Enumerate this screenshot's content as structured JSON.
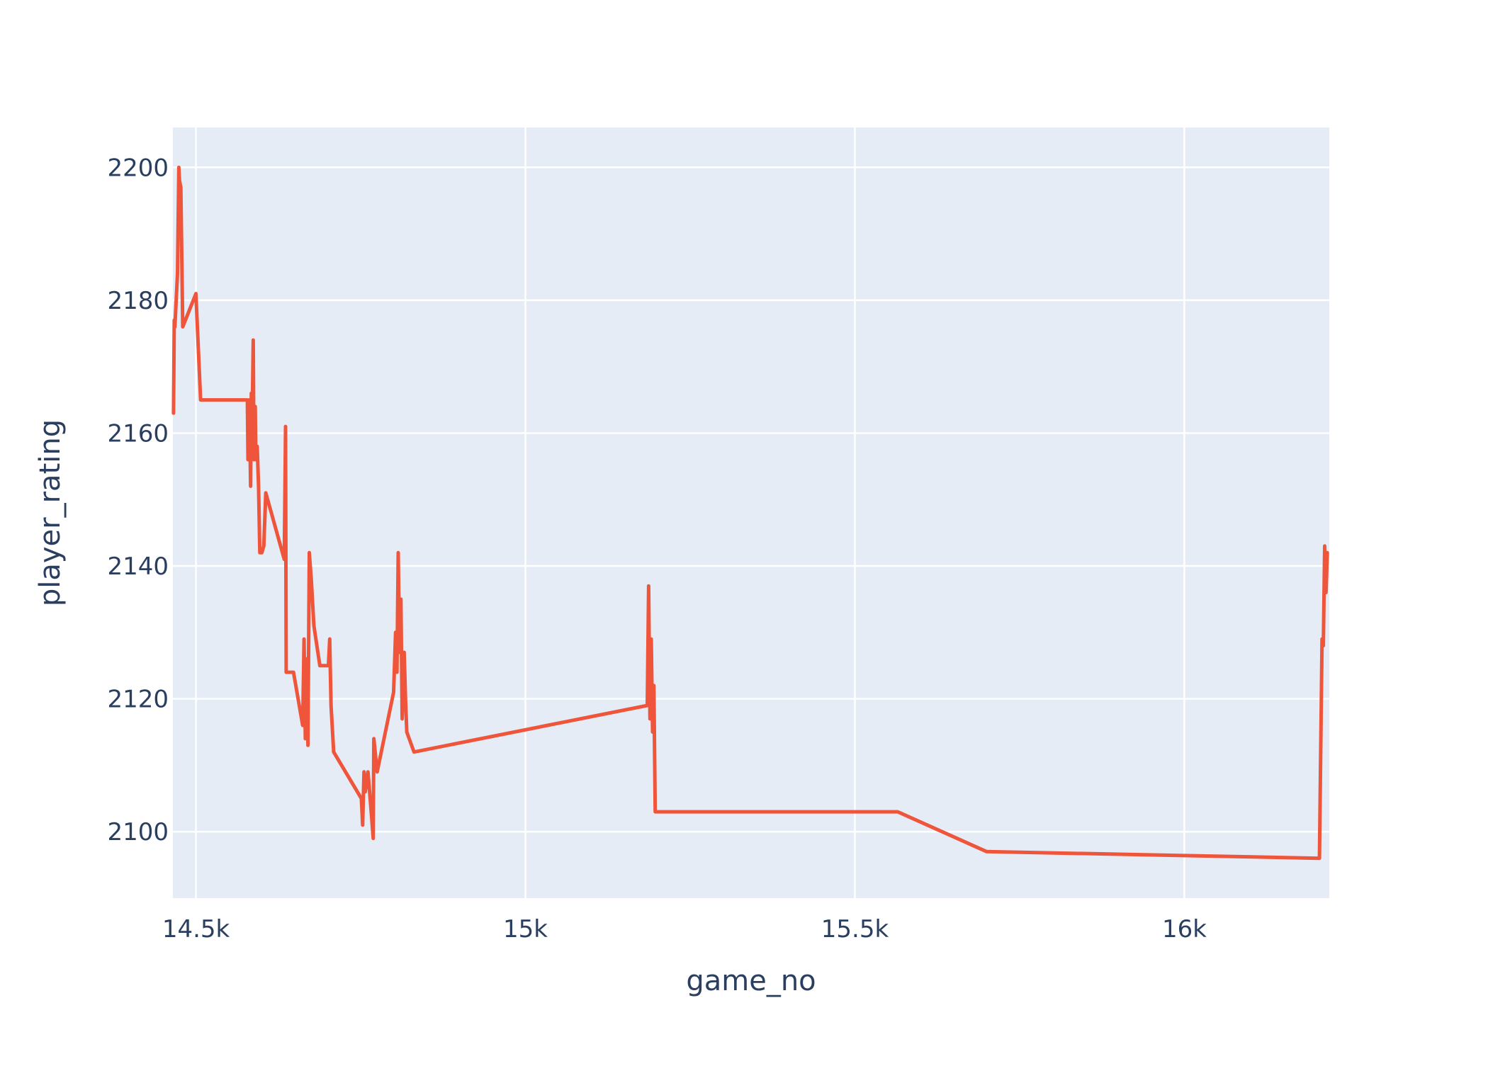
{
  "chart_data": {
    "type": "line",
    "title": "",
    "xlabel": "game_no",
    "ylabel": "player_rating",
    "xlim": [
      14465,
      16220
    ],
    "ylim": [
      2090,
      2206
    ],
    "x_ticks": [
      14500,
      15000,
      15500,
      16000
    ],
    "x_tick_labels": [
      "14.5k",
      "15k",
      "15.5k",
      "16k"
    ],
    "y_ticks": [
      2100,
      2120,
      2140,
      2160,
      2180,
      2200
    ],
    "y_tick_labels": [
      "2100",
      "2120",
      "2140",
      "2160",
      "2180",
      "2200"
    ],
    "grid": true,
    "legend": "none",
    "series": [
      {
        "color": "#ef553b",
        "x": [
          14466,
          14467,
          14468,
          14472,
          14474,
          14475,
          14477,
          14480,
          14488,
          14500,
          14507,
          14510,
          14578,
          14579,
          14581,
          14583,
          14584,
          14585,
          14587,
          14588,
          14590,
          14591,
          14593,
          14595,
          14597,
          14600,
          14603,
          14606,
          14634,
          14636,
          14637,
          14639,
          14642,
          14648,
          14662,
          14664,
          14666,
          14668,
          14670,
          14672,
          14675,
          14679,
          14688,
          14701,
          14703,
          14705,
          14709,
          14751,
          14753,
          14755,
          14757,
          14761,
          14766,
          14769,
          14770,
          14775,
          14800,
          14803,
          14805,
          14807,
          14809,
          14811,
          14813,
          14816,
          14818,
          14820,
          14831,
          15185,
          15187,
          15189,
          15191,
          15193,
          15195,
          15197,
          15199,
          15565,
          15700,
          16205,
          16209,
          16211,
          16213,
          16215,
          16217
        ],
        "y": [
          2163,
          2177,
          2176,
          2184,
          2200,
          2198,
          2197,
          2176,
          2178,
          2181,
          2165,
          2165,
          2165,
          2156,
          2165,
          2152,
          2166,
          2160,
          2174,
          2156,
          2164,
          2156,
          2158,
          2152,
          2142,
          2142,
          2143,
          2151,
          2141,
          2161,
          2124,
          2124,
          2124,
          2124,
          2116,
          2129,
          2114,
          2126,
          2113,
          2142,
          2138,
          2131,
          2125,
          2125,
          2129,
          2119,
          2112,
          2105,
          2101,
          2109,
          2106,
          2109,
          2103,
          2099,
          2114,
          2109,
          2121,
          2130,
          2124,
          2142,
          2127,
          2135,
          2117,
          2127,
          2120,
          2115,
          2112,
          2119,
          2137,
          2117,
          2129,
          2115,
          2122,
          2103,
          2103,
          2103,
          2097,
          2096,
          2129,
          2128,
          2143,
          2136,
          2142
        ]
      }
    ]
  }
}
